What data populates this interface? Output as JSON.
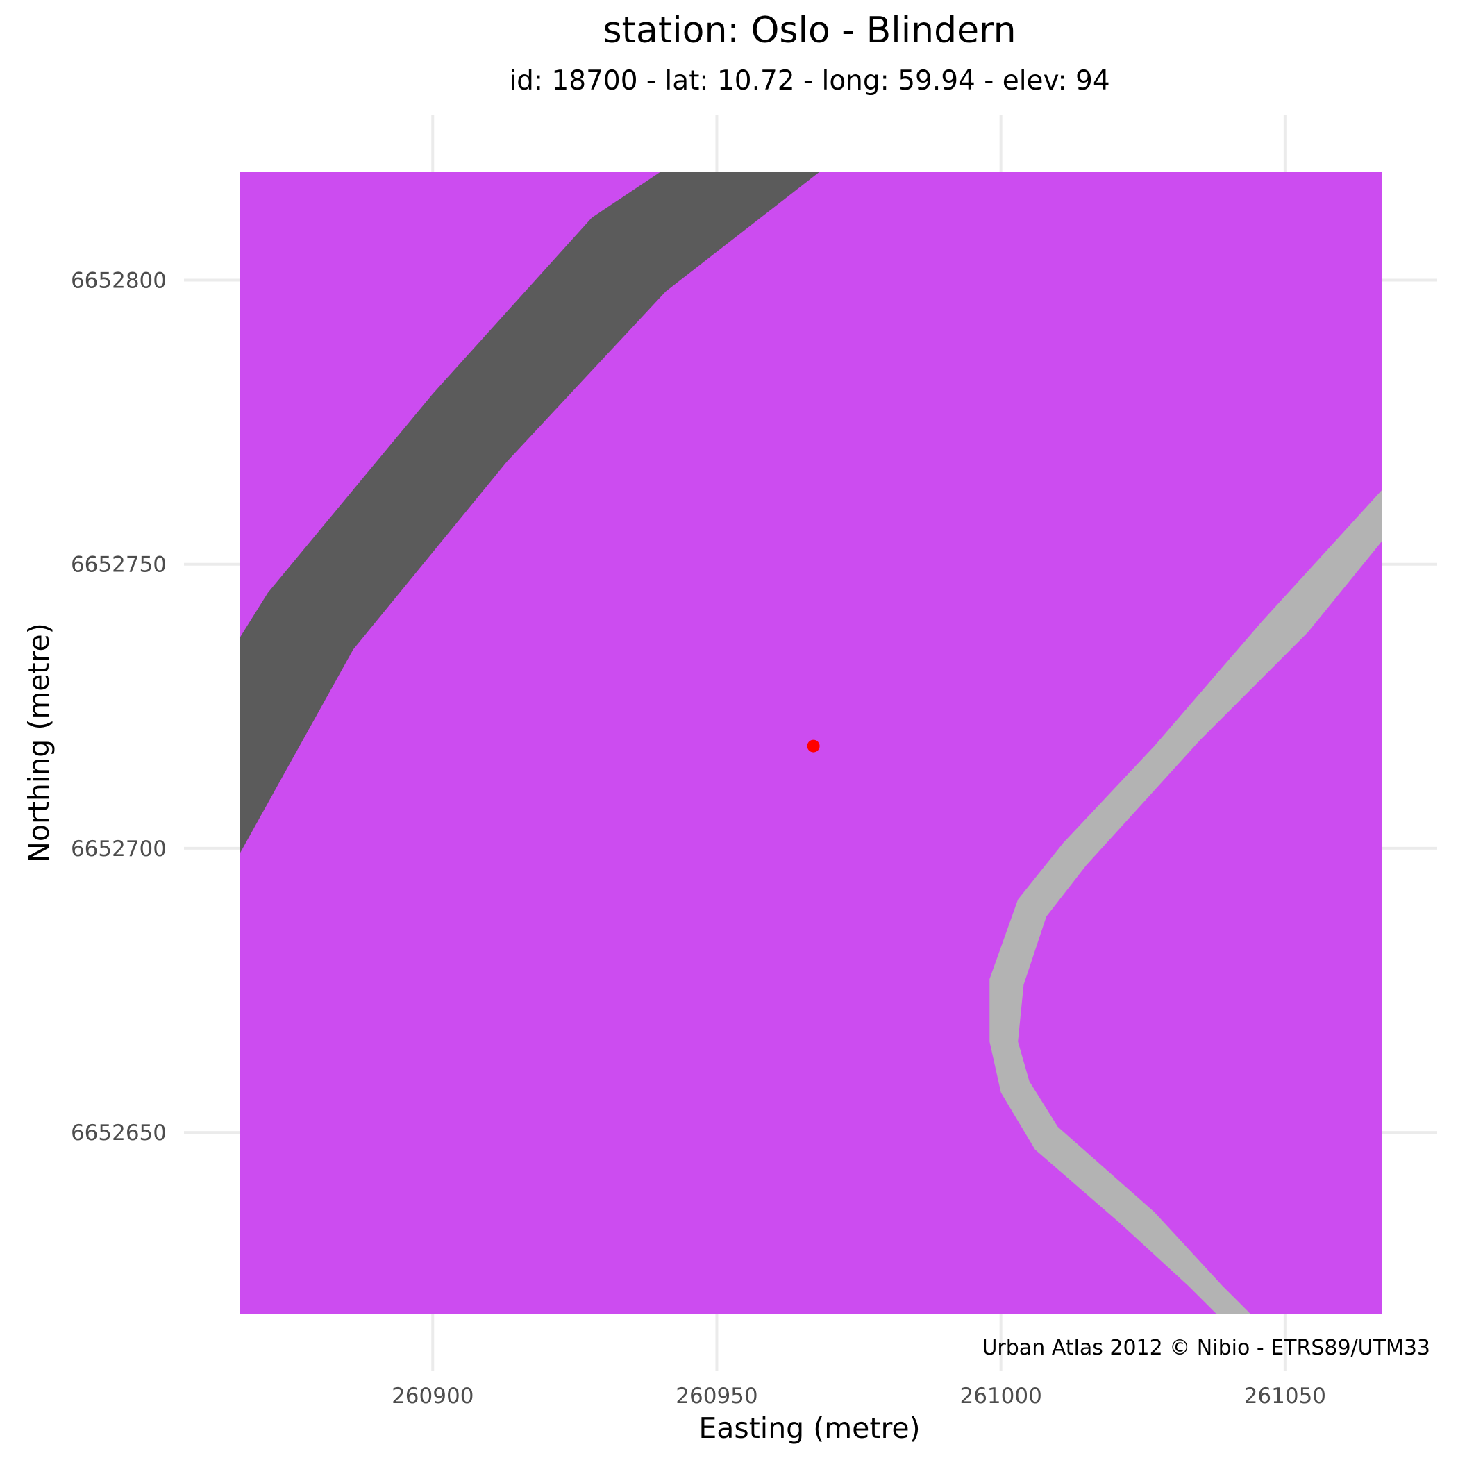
{
  "title": "station: Oslo - Blindern",
  "subtitle": "id: 18700 - lat: 10.72 - long: 59.94 - elev: 94",
  "caption": "Urban Atlas 2012 © Nibio - ETRS89/UTM33",
  "chart_data": {
    "type": "map",
    "xlabel": "Easting (metre)",
    "ylabel": "Northing (metre)",
    "xlim": [
      260866,
      261067
    ],
    "ylim": [
      6652618,
      6652819
    ],
    "x_ticks": [
      260900,
      260950,
      261000,
      261050
    ],
    "y_ticks": [
      6652650,
      6652700,
      6652750,
      6652800
    ],
    "x_tick_labels": [
      "260900",
      "260950",
      "261000",
      "261050"
    ],
    "y_tick_labels": [
      "6652650",
      "6652700",
      "6652750",
      "6652800"
    ],
    "grid": true,
    "background_color": "#cc4cf0",
    "land_use_layers": [
      {
        "id": "road-dark",
        "color": "#5b5b5b",
        "polygon": [
          [
            260866,
            6652737
          ],
          [
            260871,
            6652745
          ],
          [
            260900,
            6652780
          ],
          [
            260928,
            6652811
          ],
          [
            260940,
            6652819
          ],
          [
            260968,
            6652819
          ],
          [
            260941,
            6652798
          ],
          [
            260913,
            6652768
          ],
          [
            260886,
            6652735
          ],
          [
            260866,
            6652699
          ]
        ]
      },
      {
        "id": "road-light",
        "color": "#b3b3b3",
        "polygon": [
          [
            261067,
            6652763
          ],
          [
            261046,
            6652740
          ],
          [
            261027,
            6652718
          ],
          [
            261011,
            6652701
          ],
          [
            261003,
            6652691
          ],
          [
            260998,
            6652677
          ],
          [
            260998,
            6652666
          ],
          [
            261000,
            6652657
          ],
          [
            261006,
            6652647
          ],
          [
            261021,
            6652634
          ],
          [
            261033,
            6652623
          ],
          [
            261038,
            6652618
          ],
          [
            261044,
            6652618
          ],
          [
            261039,
            6652623
          ],
          [
            261027,
            6652636
          ],
          [
            261010,
            6652651
          ],
          [
            261005,
            6652659
          ],
          [
            261003,
            6652666
          ],
          [
            261004,
            6652676
          ],
          [
            261008,
            6652688
          ],
          [
            261015,
            6652697
          ],
          [
            261035,
            6652719
          ],
          [
            261054,
            6652738
          ],
          [
            261067,
            6652754
          ]
        ]
      }
    ],
    "points": [
      {
        "name": "station",
        "x": 260967,
        "y": 6652718,
        "color": "#ff0000"
      }
    ]
  }
}
